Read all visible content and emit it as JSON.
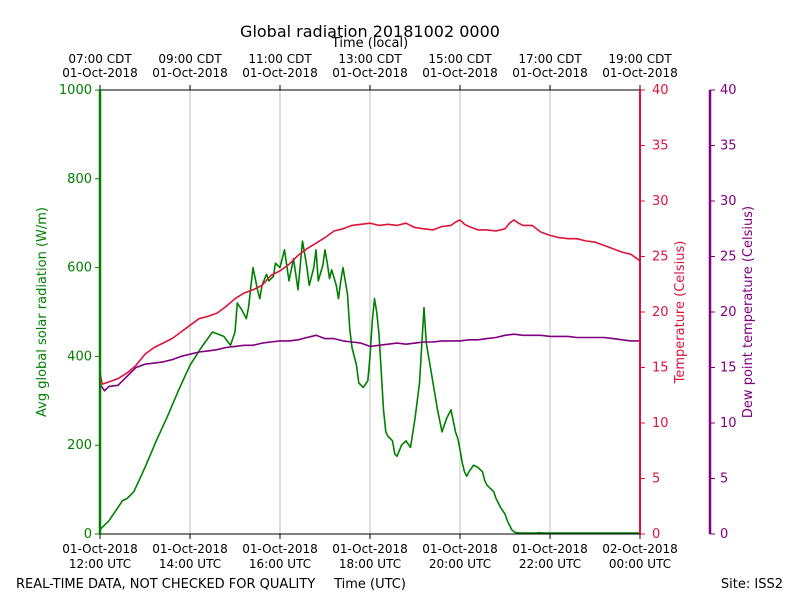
{
  "chart_data": {
    "type": "line",
    "title": "Global radiation 20181002 0000",
    "top_axis_label": "Time (local)",
    "xlabel": "Time (UTC)",
    "ylabel_left": "Avg global solar radiation (W/m)",
    "ylabel_right_temp": "Temperature (Celsius)",
    "ylabel_right_dew": "Dew point temperature (Celsius)",
    "footer_left": "REAL-TIME DATA, NOT CHECKED FOR QUALITY",
    "footer_right": "Site: ISS2",
    "x_range_hours": [
      12,
      24
    ],
    "y_left_range": [
      0,
      1000
    ],
    "y_left_ticks": [
      0,
      200,
      400,
      600,
      800,
      1000
    ],
    "y_temp_range": [
      0,
      40
    ],
    "y_temp_ticks": [
      0,
      5,
      10,
      15,
      20,
      25,
      30,
      35,
      40
    ],
    "y_dew_range": [
      0,
      40
    ],
    "y_dew_ticks": [
      0,
      5,
      10,
      15,
      20,
      25,
      30,
      35,
      40
    ],
    "grid": "vertical",
    "bottom_ticks": [
      {
        "h": 12,
        "line1": "01-Oct-2018",
        "line2": "12:00 UTC"
      },
      {
        "h": 14,
        "line1": "01-Oct-2018",
        "line2": "14:00 UTC"
      },
      {
        "h": 16,
        "line1": "01-Oct-2018",
        "line2": "16:00 UTC"
      },
      {
        "h": 18,
        "line1": "01-Oct-2018",
        "line2": "18:00 UTC"
      },
      {
        "h": 20,
        "line1": "01-Oct-2018",
        "line2": "20:00 UTC"
      },
      {
        "h": 22,
        "line1": "01-Oct-2018",
        "line2": "22:00 UTC"
      },
      {
        "h": 24,
        "line1": "02-Oct-2018",
        "line2": "00:00 UTC"
      }
    ],
    "top_ticks": [
      {
        "h": 12,
        "line1": "07:00 CDT",
        "line2": "01-Oct-2018"
      },
      {
        "h": 14,
        "line1": "09:00 CDT",
        "line2": "01-Oct-2018"
      },
      {
        "h": 16,
        "line1": "11:00 CDT",
        "line2": "01-Oct-2018"
      },
      {
        "h": 18,
        "line1": "13:00 CDT",
        "line2": "01-Oct-2018"
      },
      {
        "h": 20,
        "line1": "15:00 CDT",
        "line2": "01-Oct-2018"
      },
      {
        "h": 22,
        "line1": "17:00 CDT",
        "line2": "01-Oct-2018"
      },
      {
        "h": 24,
        "line1": "19:00 CDT",
        "line2": "01-Oct-2018"
      }
    ],
    "series": [
      {
        "name": "Avg global solar radiation",
        "axis": "left",
        "color": "#008000",
        "x": [
          12.0,
          12.2,
          12.4,
          12.5,
          12.6,
          12.75,
          13.0,
          13.25,
          13.5,
          13.75,
          14.0,
          14.25,
          14.5,
          14.75,
          14.9,
          15.0,
          15.05,
          15.15,
          15.25,
          15.3,
          15.4,
          15.5,
          15.55,
          15.6,
          15.7,
          15.75,
          15.85,
          15.9,
          16.0,
          16.1,
          16.2,
          16.3,
          16.4,
          16.5,
          16.6,
          16.65,
          16.75,
          16.8,
          16.85,
          16.95,
          17.0,
          17.05,
          17.1,
          17.15,
          17.25,
          17.3,
          17.35,
          17.4,
          17.5,
          17.55,
          17.6,
          17.7,
          17.75,
          17.85,
          17.95,
          18.0,
          18.05,
          18.1,
          18.15,
          18.2,
          18.3,
          18.35,
          18.4,
          18.5,
          18.55,
          18.6,
          18.7,
          18.8,
          18.9,
          19.0,
          19.1,
          19.2,
          19.25,
          19.35,
          19.5,
          19.6,
          19.7,
          19.8,
          19.9,
          19.95,
          20.0,
          20.05,
          20.1,
          20.15,
          20.2,
          20.3,
          20.4,
          20.5,
          20.55,
          20.6,
          20.7,
          20.75,
          20.8,
          20.85,
          20.9,
          21.0,
          21.05,
          21.1,
          21.15,
          21.2,
          21.25,
          21.35,
          21.4,
          21.5,
          21.6,
          21.7,
          21.75,
          21.85,
          21.95,
          22.0,
          22.1,
          22.2,
          22.3,
          22.4,
          22.5,
          22.6,
          22.7,
          22.8,
          22.9,
          23.0,
          23.1,
          23.2,
          23.3,
          23.4,
          23.5,
          23.6,
          23.7,
          23.8,
          23.9,
          24.0
        ],
        "values": [
          10,
          30,
          60,
          75,
          80,
          95,
          150,
          210,
          265,
          325,
          380,
          420,
          455,
          445,
          425,
          455,
          520,
          505,
          485,
          510,
          600,
          550,
          530,
          560,
          585,
          570,
          580,
          610,
          600,
          640,
          570,
          620,
          550,
          660,
          600,
          560,
          600,
          640,
          570,
          605,
          640,
          610,
          575,
          595,
          560,
          530,
          570,
          600,
          540,
          460,
          420,
          380,
          340,
          330,
          345,
          400,
          480,
          530,
          500,
          450,
          280,
          230,
          220,
          210,
          180,
          175,
          200,
          210,
          195,
          260,
          340,
          510,
          430,
          370,
          280,
          230,
          260,
          280,
          230,
          215,
          190,
          160,
          140,
          130,
          140,
          155,
          150,
          140,
          120,
          110,
          100,
          95,
          80,
          70,
          60,
          45,
          30,
          20,
          10,
          5,
          3,
          2,
          2,
          2,
          2,
          2,
          3,
          2,
          2,
          2,
          2,
          2,
          2,
          2,
          2,
          2,
          2,
          2,
          2,
          2,
          2,
          2,
          2,
          2,
          2,
          2,
          2,
          2,
          2,
          2
        ]
      },
      {
        "name": "Temperature",
        "axis": "temp",
        "color": "#dc143c",
        "x": [
          12.0,
          12.05,
          12.2,
          12.4,
          12.6,
          12.8,
          13.0,
          13.2,
          13.4,
          13.6,
          13.8,
          14.0,
          14.2,
          14.4,
          14.6,
          14.8,
          15.0,
          15.2,
          15.4,
          15.6,
          15.8,
          16.0,
          16.2,
          16.4,
          16.6,
          16.8,
          17.0,
          17.2,
          17.4,
          17.6,
          17.8,
          18.0,
          18.2,
          18.4,
          18.6,
          18.8,
          19.0,
          19.2,
          19.4,
          19.6,
          19.8,
          19.9,
          20.0,
          20.1,
          20.2,
          20.4,
          20.6,
          20.8,
          21.0,
          21.1,
          21.2,
          21.3,
          21.4,
          21.6,
          21.8,
          22.0,
          22.2,
          22.4,
          22.6,
          22.8,
          23.0,
          23.2,
          23.4,
          23.6,
          23.8,
          24.0
        ],
        "values": [
          14.5,
          13.5,
          13.7,
          14.0,
          14.5,
          15.2,
          16.2,
          16.8,
          17.2,
          17.6,
          18.2,
          18.8,
          19.4,
          19.6,
          19.9,
          20.5,
          21.2,
          21.7,
          22.0,
          22.4,
          23.3,
          23.7,
          24.3,
          25.1,
          25.7,
          26.2,
          26.7,
          27.3,
          27.5,
          27.8,
          27.9,
          28.0,
          27.8,
          27.9,
          27.8,
          28.0,
          27.6,
          27.5,
          27.4,
          27.7,
          27.8,
          28.1,
          28.3,
          27.9,
          27.7,
          27.4,
          27.4,
          27.3,
          27.5,
          28.0,
          28.3,
          28.0,
          27.8,
          27.8,
          27.2,
          26.9,
          26.7,
          26.6,
          26.6,
          26.4,
          26.3,
          26.0,
          25.7,
          25.4,
          25.2,
          24.6
        ]
      },
      {
        "name": "Dew point temperature",
        "axis": "dew",
        "color": "#800080",
        "x": [
          12.0,
          12.1,
          12.2,
          12.4,
          12.6,
          12.8,
          13.0,
          13.2,
          13.4,
          13.6,
          13.8,
          14.0,
          14.2,
          14.4,
          14.6,
          14.8,
          15.0,
          15.2,
          15.4,
          15.6,
          15.8,
          16.0,
          16.2,
          16.4,
          16.6,
          16.8,
          17.0,
          17.2,
          17.4,
          17.6,
          17.8,
          18.0,
          18.2,
          18.4,
          18.6,
          18.8,
          19.0,
          19.2,
          19.4,
          19.6,
          19.8,
          20.0,
          20.2,
          20.4,
          20.6,
          20.8,
          21.0,
          21.2,
          21.4,
          21.6,
          21.8,
          22.0,
          22.2,
          22.4,
          22.6,
          22.8,
          23.0,
          23.2,
          23.4,
          23.6,
          23.8,
          24.0
        ],
        "values": [
          13.5,
          12.9,
          13.3,
          13.4,
          14.2,
          15.0,
          15.3,
          15.4,
          15.5,
          15.7,
          16.0,
          16.2,
          16.4,
          16.5,
          16.6,
          16.8,
          16.9,
          17.0,
          17.0,
          17.2,
          17.3,
          17.4,
          17.4,
          17.5,
          17.7,
          17.9,
          17.6,
          17.6,
          17.4,
          17.3,
          17.2,
          16.9,
          17.0,
          17.1,
          17.2,
          17.1,
          17.2,
          17.3,
          17.3,
          17.4,
          17.4,
          17.4,
          17.5,
          17.5,
          17.6,
          17.7,
          17.9,
          18.0,
          17.9,
          17.9,
          17.9,
          17.8,
          17.8,
          17.8,
          17.7,
          17.7,
          17.7,
          17.7,
          17.6,
          17.5,
          17.4,
          17.4
        ]
      }
    ]
  }
}
